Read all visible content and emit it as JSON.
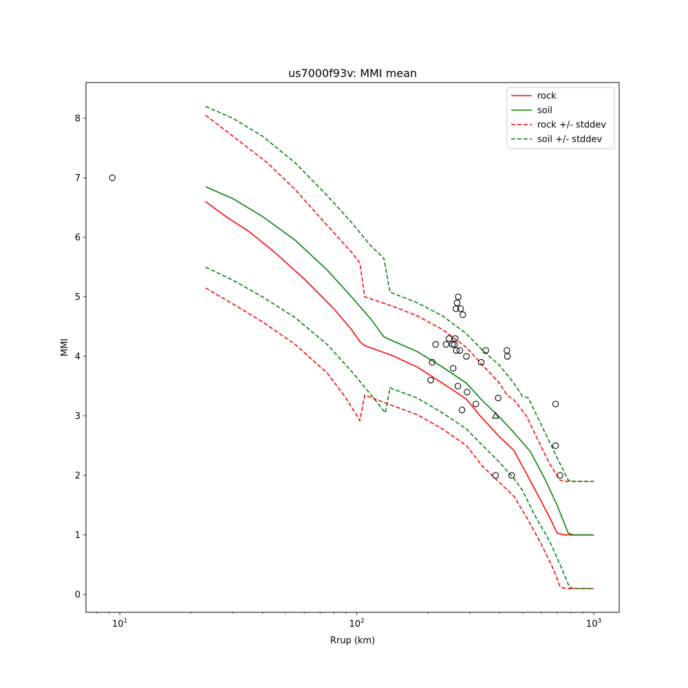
{
  "chart_data": {
    "type": "line",
    "title": "us7000f93v: MMI mean",
    "xlabel": "Rrup (km)",
    "ylabel": "MMI",
    "xscale": "log",
    "xlim": [
      7.2,
      1280
    ],
    "ylim": [
      -0.3,
      8.6
    ],
    "x_ticks": [
      {
        "value": 10,
        "base": "10",
        "exp": "1"
      },
      {
        "value": 100,
        "base": "10",
        "exp": "2"
      },
      {
        "value": 1000,
        "base": "10",
        "exp": "3"
      }
    ],
    "y_ticks": [
      0,
      1,
      2,
      3,
      4,
      5,
      6,
      7,
      8
    ],
    "grid": false,
    "legend_position": "top-right",
    "series": [
      {
        "name": "rock",
        "color": "#ff0000",
        "dash": "solid",
        "points": [
          [
            23,
            6.6
          ],
          [
            28,
            6.35
          ],
          [
            35,
            6.1
          ],
          [
            45,
            5.75
          ],
          [
            60,
            5.3
          ],
          [
            80,
            4.8
          ],
          [
            95,
            4.45
          ],
          [
            103,
            4.25
          ],
          [
            108,
            4.18
          ],
          [
            140,
            4.02
          ],
          [
            180,
            3.82
          ],
          [
            230,
            3.55
          ],
          [
            290,
            3.28
          ],
          [
            340,
            2.95
          ],
          [
            400,
            2.65
          ],
          [
            460,
            2.42
          ],
          [
            550,
            1.85
          ],
          [
            650,
            1.3
          ],
          [
            700,
            1.03
          ],
          [
            760,
            1.0
          ],
          [
            1000,
            1.0
          ]
        ]
      },
      {
        "name": "soil",
        "color": "#008000",
        "dash": "solid",
        "points": [
          [
            23,
            6.85
          ],
          [
            30,
            6.65
          ],
          [
            40,
            6.35
          ],
          [
            55,
            5.95
          ],
          [
            75,
            5.45
          ],
          [
            95,
            5.0
          ],
          [
            115,
            4.62
          ],
          [
            130,
            4.33
          ],
          [
            140,
            4.27
          ],
          [
            180,
            4.08
          ],
          [
            230,
            3.82
          ],
          [
            290,
            3.55
          ],
          [
            340,
            3.25
          ],
          [
            400,
            2.98
          ],
          [
            460,
            2.72
          ],
          [
            540,
            2.4
          ],
          [
            620,
            1.95
          ],
          [
            700,
            1.5
          ],
          [
            780,
            1.03
          ],
          [
            820,
            1.0
          ],
          [
            1000,
            1.0
          ]
        ]
      },
      {
        "name": "rock +/- stddev (upper)",
        "color": "#ff0000",
        "dash": "dashed",
        "points": [
          [
            23,
            8.05
          ],
          [
            30,
            7.7
          ],
          [
            42,
            7.25
          ],
          [
            55,
            6.8
          ],
          [
            75,
            6.2
          ],
          [
            95,
            5.75
          ],
          [
            103,
            5.57
          ],
          [
            108,
            5.0
          ],
          [
            140,
            4.85
          ],
          [
            180,
            4.68
          ],
          [
            230,
            4.45
          ],
          [
            290,
            4.15
          ],
          [
            340,
            3.85
          ],
          [
            400,
            3.55
          ],
          [
            430,
            3.35
          ],
          [
            460,
            3.27
          ],
          [
            520,
            3.0
          ],
          [
            580,
            2.6
          ],
          [
            650,
            2.2
          ],
          [
            720,
            1.92
          ],
          [
            760,
            1.9
          ],
          [
            1000,
            1.9
          ]
        ]
      },
      {
        "name": "rock +/- stddev (lower)",
        "color": "#ff0000",
        "dash": "dashed",
        "points": [
          [
            23,
            5.15
          ],
          [
            30,
            4.88
          ],
          [
            40,
            4.58
          ],
          [
            55,
            4.2
          ],
          [
            75,
            3.72
          ],
          [
            90,
            3.3
          ],
          [
            103,
            2.92
          ],
          [
            108,
            3.35
          ],
          [
            140,
            3.18
          ],
          [
            180,
            3.02
          ],
          [
            230,
            2.78
          ],
          [
            290,
            2.5
          ],
          [
            340,
            2.15
          ],
          [
            400,
            1.88
          ],
          [
            460,
            1.65
          ],
          [
            520,
            1.3
          ],
          [
            600,
            0.85
          ],
          [
            680,
            0.4
          ],
          [
            720,
            0.13
          ],
          [
            760,
            0.1
          ],
          [
            1000,
            0.1
          ]
        ]
      },
      {
        "name": "soil +/- stddev (upper)",
        "color": "#008000",
        "dash": "dashed",
        "points": [
          [
            23,
            8.2
          ],
          [
            30,
            8.0
          ],
          [
            40,
            7.7
          ],
          [
            55,
            7.25
          ],
          [
            75,
            6.7
          ],
          [
            95,
            6.25
          ],
          [
            115,
            5.85
          ],
          [
            130,
            5.65
          ],
          [
            138,
            5.08
          ],
          [
            180,
            4.9
          ],
          [
            230,
            4.68
          ],
          [
            290,
            4.38
          ],
          [
            340,
            4.1
          ],
          [
            400,
            3.85
          ],
          [
            460,
            3.55
          ],
          [
            500,
            3.33
          ],
          [
            530,
            3.3
          ],
          [
            600,
            2.85
          ],
          [
            700,
            2.3
          ],
          [
            780,
            1.92
          ],
          [
            820,
            1.9
          ],
          [
            1000,
            1.9
          ]
        ]
      },
      {
        "name": "soil +/- stddev (lower)",
        "color": "#008000",
        "dash": "dashed",
        "points": [
          [
            23,
            5.5
          ],
          [
            30,
            5.28
          ],
          [
            40,
            5.0
          ],
          [
            55,
            4.65
          ],
          [
            75,
            4.2
          ],
          [
            95,
            3.75
          ],
          [
            115,
            3.35
          ],
          [
            132,
            3.05
          ],
          [
            138,
            3.47
          ],
          [
            180,
            3.3
          ],
          [
            230,
            3.05
          ],
          [
            290,
            2.78
          ],
          [
            340,
            2.5
          ],
          [
            400,
            2.22
          ],
          [
            460,
            1.95
          ],
          [
            500,
            1.75
          ],
          [
            560,
            1.35
          ],
          [
            650,
            0.9
          ],
          [
            730,
            0.45
          ],
          [
            790,
            0.12
          ],
          [
            820,
            0.1
          ],
          [
            1000,
            0.1
          ]
        ]
      }
    ],
    "legend": [
      {
        "label": "rock",
        "color": "#ff0000",
        "dash": "solid"
      },
      {
        "label": "soil",
        "color": "#008000",
        "dash": "solid"
      },
      {
        "label": "rock +/- stddev",
        "color": "#ff0000",
        "dash": "dashed"
      },
      {
        "label": "soil +/- stddev",
        "color": "#008000",
        "dash": "dashed"
      }
    ],
    "observations_circle": [
      [
        9.3,
        7.0
      ],
      [
        205,
        3.6
      ],
      [
        208,
        3.9
      ],
      [
        215,
        4.2
      ],
      [
        238,
        4.2
      ],
      [
        245,
        4.3
      ],
      [
        253,
        4.2
      ],
      [
        255,
        3.8
      ],
      [
        258,
        4.2
      ],
      [
        260,
        4.3
      ],
      [
        262,
        4.8
      ],
      [
        263,
        4.1
      ],
      [
        265,
        4.9
      ],
      [
        267,
        3.5
      ],
      [
        268,
        5.0
      ],
      [
        272,
        4.1
      ],
      [
        274,
        4.8
      ],
      [
        278,
        3.1
      ],
      [
        280,
        4.7
      ],
      [
        290,
        4.0
      ],
      [
        292,
        3.4
      ],
      [
        318,
        3.2
      ],
      [
        335,
        3.9
      ],
      [
        350,
        4.1
      ],
      [
        385,
        2.0
      ],
      [
        395,
        3.3
      ],
      [
        430,
        4.1
      ],
      [
        432,
        4.0
      ],
      [
        450,
        2.0
      ],
      [
        690,
        3.2
      ],
      [
        690,
        2.5
      ],
      [
        720,
        2.0
      ]
    ],
    "observations_triangle": [
      [
        385,
        3.0
      ]
    ]
  }
}
